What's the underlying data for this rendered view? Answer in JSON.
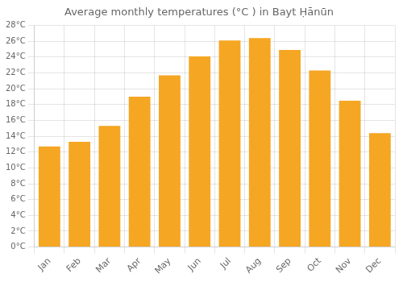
{
  "chart_data": {
    "type": "bar",
    "title": "Average monthly temperatures (°C ) in Bayt Ḥānūn",
    "categories": [
      "Jan",
      "Feb",
      "Mar",
      "Apr",
      "May",
      "Jun",
      "Jul",
      "Aug",
      "Sep",
      "Oct",
      "Nov",
      "Dec"
    ],
    "values": [
      12.7,
      13.3,
      15.3,
      19.0,
      21.7,
      24.1,
      26.1,
      26.4,
      24.9,
      22.3,
      18.5,
      14.4
    ],
    "color": "#F5A623",
    "ylim": [
      0,
      28
    ],
    "yticks": [
      {
        "value": 0,
        "label": "0°C"
      },
      {
        "value": 2,
        "label": "2°C"
      },
      {
        "value": 4,
        "label": "4°C"
      },
      {
        "value": 6,
        "label": "6°C"
      },
      {
        "value": 8,
        "label": "8°C"
      },
      {
        "value": 10,
        "label": "10°C"
      },
      {
        "value": 12,
        "label": "12°C"
      },
      {
        "value": 14,
        "label": "14°C"
      },
      {
        "value": 16,
        "label": "16°C"
      },
      {
        "value": 18,
        "label": "18°C"
      },
      {
        "value": 20,
        "label": "20°C"
      },
      {
        "value": 22,
        "label": "22°C"
      },
      {
        "value": 24,
        "label": "24°C"
      },
      {
        "value": 26,
        "label": "26°C"
      },
      {
        "value": 28,
        "label": "28°C"
      }
    ],
    "grid": true
  }
}
